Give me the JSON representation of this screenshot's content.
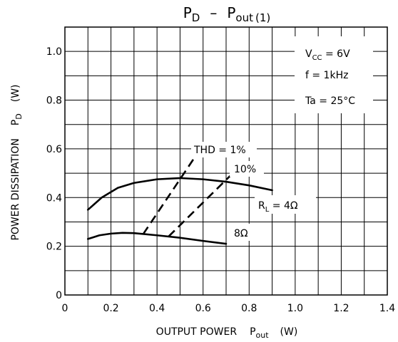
{
  "chart_data": {
    "type": "line",
    "title": {
      "main": "P",
      "main_sub": "D",
      "sep": "–",
      "main2": "P",
      "main2_sub": "out",
      "suffix": "(1)"
    },
    "xlabel": {
      "text": "OUTPUT POWER",
      "sym": "P",
      "sym_sub": "out",
      "unit": "(W)"
    },
    "ylabel": {
      "text": "POWER DISSIPATION",
      "sym": "P",
      "sym_sub": "D",
      "unit": "(W)"
    },
    "xlim": [
      0,
      1.4
    ],
    "ylim": [
      0,
      1.1
    ],
    "grid": true,
    "x_ticks": [
      "0",
      "0.2",
      "0.4",
      "0.6",
      "0.8",
      "1.0",
      "1.2",
      "1.4"
    ],
    "y_ticks": [
      "0",
      "0.2",
      "0.4",
      "0.6",
      "0.8",
      "1.0"
    ],
    "conditions": [
      {
        "pre": "V",
        "sub": "CC",
        "post": " = 6V"
      },
      {
        "pre": "f = 1kHz",
        "sub": "",
        "post": ""
      },
      {
        "pre": "Ta = 25°C",
        "sub": "",
        "post": ""
      }
    ],
    "series": [
      {
        "name": "4Ω",
        "label_pre": "R",
        "label_sub": "L",
        "label_post": " = 4Ω",
        "style": "solid",
        "points": [
          [
            0.1,
            0.35
          ],
          [
            0.16,
            0.4
          ],
          [
            0.23,
            0.44
          ],
          [
            0.3,
            0.46
          ],
          [
            0.4,
            0.475
          ],
          [
            0.5,
            0.48
          ],
          [
            0.6,
            0.475
          ],
          [
            0.7,
            0.465
          ],
          [
            0.8,
            0.45
          ],
          [
            0.9,
            0.43
          ]
        ]
      },
      {
        "name": "8Ω",
        "label_pre": "8Ω",
        "label_sub": "",
        "label_post": "",
        "style": "solid",
        "points": [
          [
            0.1,
            0.23
          ],
          [
            0.15,
            0.245
          ],
          [
            0.2,
            0.252
          ],
          [
            0.25,
            0.255
          ],
          [
            0.3,
            0.254
          ],
          [
            0.4,
            0.245
          ],
          [
            0.5,
            0.235
          ],
          [
            0.6,
            0.222
          ],
          [
            0.7,
            0.21
          ]
        ]
      },
      {
        "name": "THD = 1%",
        "label_pre": "THD = 1%",
        "label_sub": "",
        "label_post": "",
        "style": "dashed",
        "points": [
          [
            0.34,
            0.25
          ],
          [
            0.56,
            0.56
          ]
        ]
      },
      {
        "name": "10%",
        "label_pre": "10%",
        "label_sub": "",
        "label_post": "",
        "style": "dashed",
        "points": [
          [
            0.45,
            0.24
          ],
          [
            0.74,
            0.51
          ]
        ]
      }
    ]
  }
}
